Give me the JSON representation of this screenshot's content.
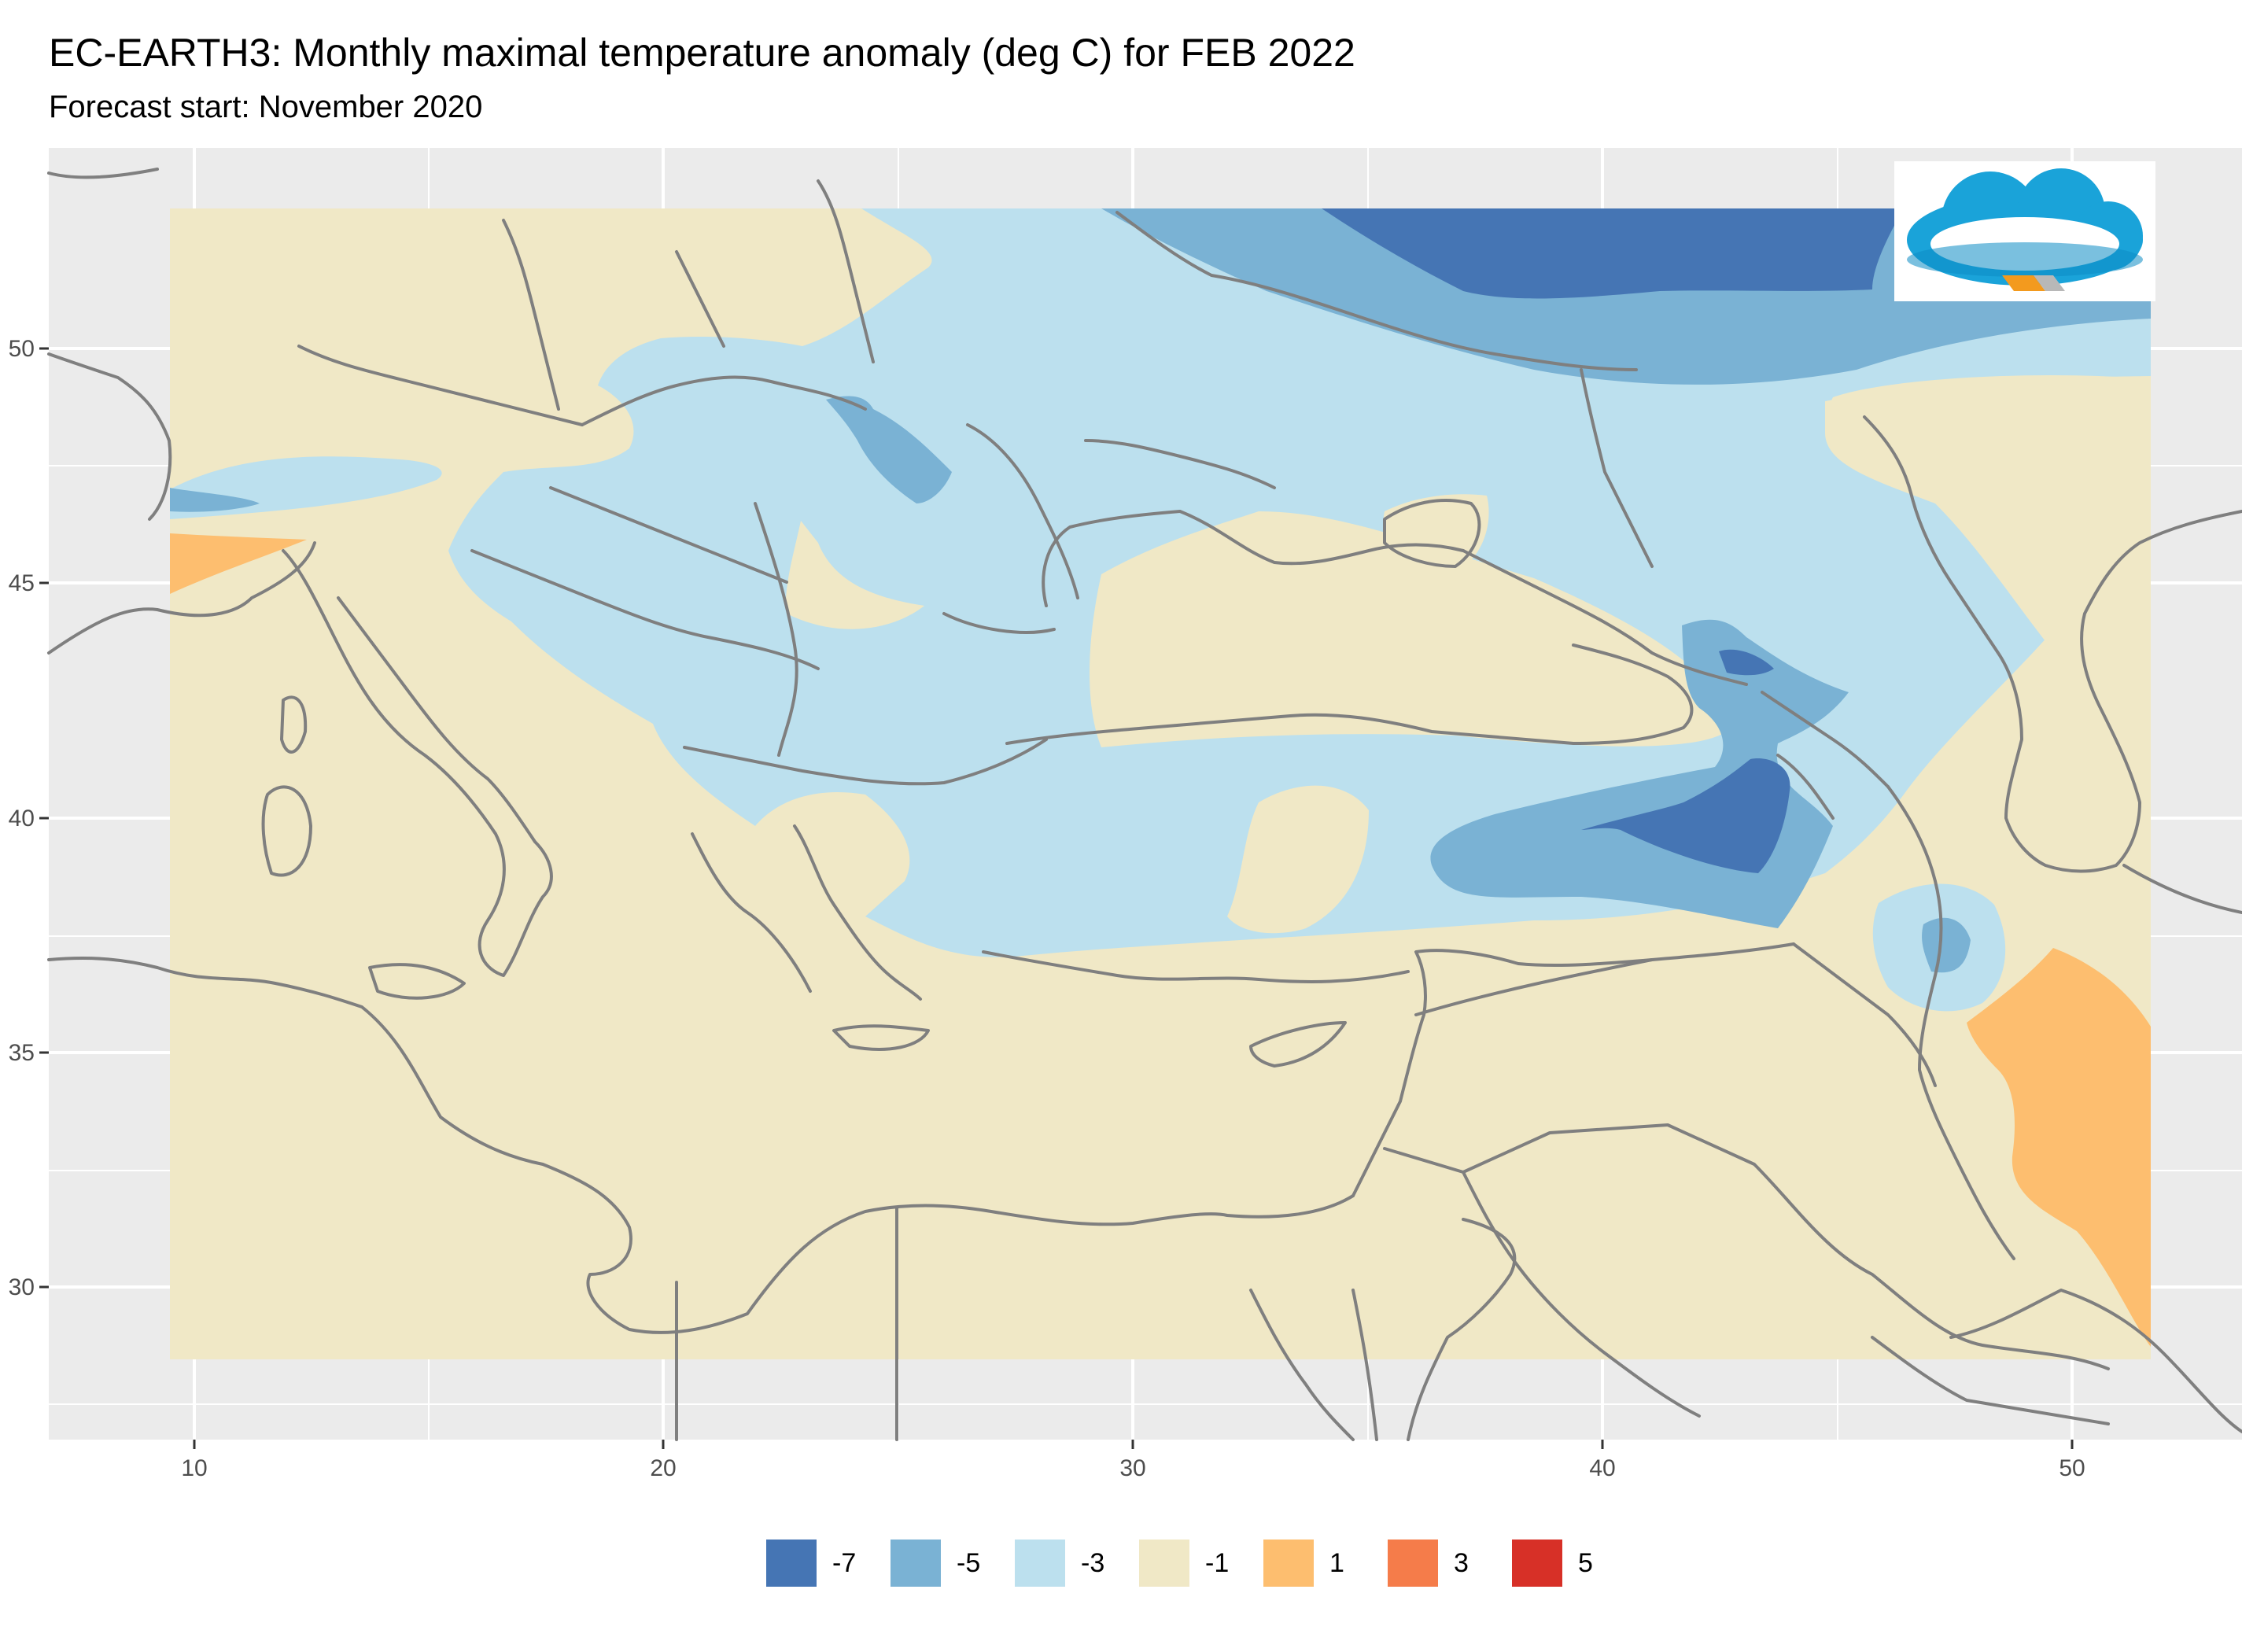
{
  "title": "EC-EARTH3: Monthly maximal temperature anomaly (deg C) for FEB 2022",
  "subtitle": "Forecast start: November 2020",
  "axes": {
    "x_ticks": [
      "10",
      "20",
      "30",
      "40",
      "50"
    ],
    "y_ticks": [
      "50",
      "45",
      "40",
      "35",
      "30"
    ]
  },
  "legend": [
    {
      "label": "-7",
      "color": "#4575b4"
    },
    {
      "label": "-5",
      "color": "#7ab2d4"
    },
    {
      "label": "-3",
      "color": "#bce0ee"
    },
    {
      "label": "-1",
      "color": "#f0e8c6"
    },
    {
      "label": "1",
      "color": "#fdbe6f"
    },
    {
      "label": "3",
      "color": "#f57c4a"
    },
    {
      "label": "5",
      "color": "#d73027"
    }
  ],
  "colors": {
    "panel_background": "#ebebeb",
    "grid": "#ffffff",
    "coastline": "#7f7f7f"
  },
  "logo": {
    "icon": "cloud-logo-icon"
  }
}
